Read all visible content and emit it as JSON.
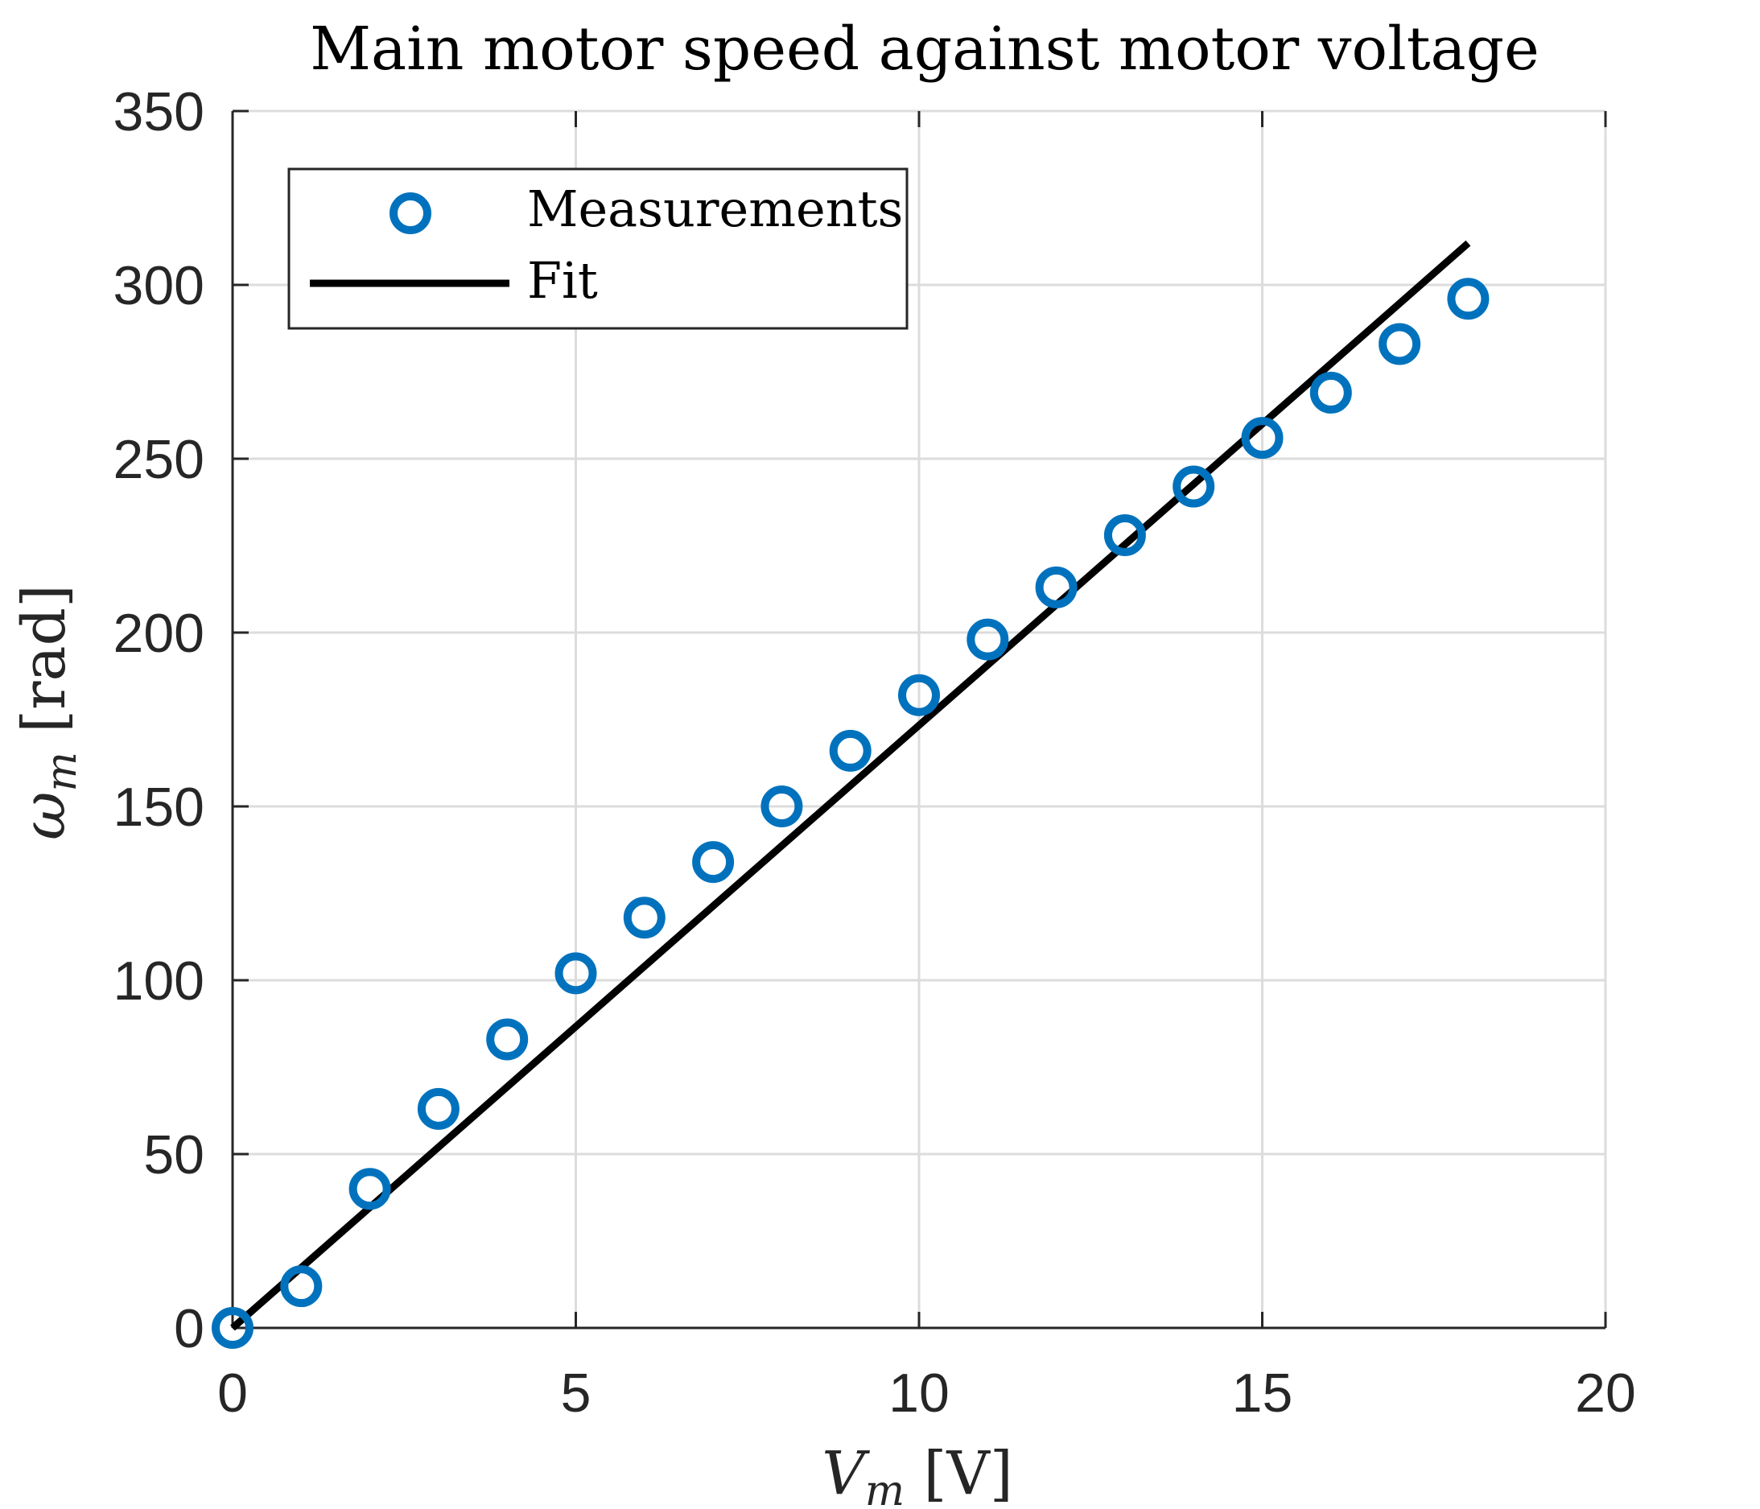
{
  "chart_data": {
    "type": "scatter",
    "title": "Main motor speed against motor voltage",
    "xlabel": "V_m [V]",
    "xlabel_parts": {
      "symbol": "V",
      "subscript": "m",
      "unit": " [V]"
    },
    "ylabel": "ω_m [rad]",
    "ylabel_parts": {
      "symbol": "ω",
      "subscript": "m",
      "unit": " [rad]"
    },
    "xlim": [
      0,
      20
    ],
    "ylim": [
      0,
      350
    ],
    "xticks": [
      0,
      5,
      10,
      15,
      20
    ],
    "yticks": [
      0,
      50,
      100,
      150,
      200,
      250,
      300,
      350
    ],
    "grid": true,
    "legend_position": "top-left",
    "series": [
      {
        "name": "Measurements",
        "style": "markers",
        "marker": "circle",
        "color": "#0072BD",
        "x": [
          0,
          1,
          2,
          3,
          4,
          5,
          6,
          7,
          8,
          9,
          10,
          11,
          12,
          13,
          14,
          15,
          16,
          17,
          18
        ],
        "y": [
          0,
          12,
          40,
          63,
          83,
          102,
          118,
          134,
          150,
          166,
          182,
          198,
          213,
          228,
          242,
          256,
          269,
          283,
          296
        ]
      },
      {
        "name": "Fit",
        "style": "line",
        "color": "#000000",
        "x": [
          0,
          18
        ],
        "y": [
          0,
          312
        ]
      }
    ]
  }
}
